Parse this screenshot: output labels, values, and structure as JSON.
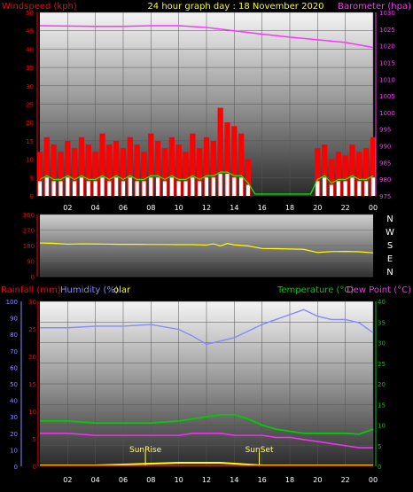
{
  "header": {
    "windspeed_label": "Windspeed (kph)",
    "graph_title": "24 hour graph day : 18 November 2020",
    "barometer_label": "Barometer (hpa)"
  },
  "lower_header": {
    "rainfall_label": "Rainfall (mm)",
    "humidity_label": "Humidity (%)",
    "solar_label": "olar",
    "temperature_label": "Temperature (°C)",
    "dewpoint_label": "Dew Point (°C)"
  },
  "direction_letters": [
    "N",
    "W",
    "S",
    "E",
    "N"
  ],
  "annotations": {
    "sunrise": "SunRise",
    "sunset": "SunSet"
  },
  "colors": {
    "wind": "#ff0000",
    "gust": "#00ff00",
    "avg_wind": "#ffffff",
    "barometer": "#ff33ff",
    "direction": "#ffff00",
    "humidity": "#8888ff",
    "temperature": "#00cc00",
    "dewpoint": "#ee33ee",
    "rain": "#ff0000",
    "solar": "#ffff00",
    "title": "#ffff00"
  },
  "chart_data": [
    {
      "type": "bar",
      "name": "wind-panel",
      "x_ticks": [
        "02",
        "04",
        "06",
        "08",
        "10",
        "12",
        "14",
        "16",
        "18",
        "20",
        "22",
        "00"
      ],
      "ylim_left": [
        0,
        50
      ],
      "yticks_left": [
        0,
        5,
        10,
        15,
        20,
        25,
        30,
        35,
        40,
        45,
        50
      ],
      "ylim_right": [
        975,
        1030
      ],
      "yticks_right": [
        975,
        980,
        985,
        990,
        995,
        1000,
        1005,
        1010,
        1015,
        1020,
        1025,
        1030
      ],
      "wind_hours": [
        0,
        0.5,
        1,
        1.5,
        2,
        2.5,
        3,
        3.5,
        4,
        4.5,
        5,
        5.5,
        6,
        6.5,
        7,
        7.5,
        8,
        8.5,
        9,
        9.5,
        10,
        10.5,
        11,
        11.5,
        12,
        12.5,
        13,
        13.5,
        14,
        14.5,
        15,
        15.5,
        16,
        16.5,
        17,
        17.5,
        18,
        18.5,
        19,
        19.5,
        20,
        20.5,
        21,
        21.5,
        22,
        22.5,
        23,
        23.5,
        24
      ],
      "wind_gust": [
        12,
        16,
        14,
        12,
        15,
        13,
        16,
        14,
        12,
        17,
        14,
        15,
        13,
        16,
        14,
        12,
        17,
        15,
        13,
        16,
        14,
        12,
        17,
        13,
        16,
        15,
        24,
        20,
        19,
        17,
        10,
        0,
        0,
        0,
        0,
        0,
        0,
        0,
        0,
        0,
        13,
        14,
        10,
        12,
        11,
        14,
        12,
        13,
        16
      ],
      "wind_avg": [
        4,
        5,
        4,
        4,
        5,
        4,
        5,
        4,
        4,
        5,
        4,
        5,
        4,
        5,
        4,
        4,
        5,
        5,
        4,
        5,
        4,
        4,
        5,
        4,
        5,
        5,
        6,
        6,
        5,
        5,
        3,
        0,
        0,
        0,
        0,
        0,
        0,
        0,
        0,
        0,
        4,
        5,
        3,
        4,
        4,
        5,
        4,
        4,
        5
      ],
      "barometer_hours": [
        0,
        2,
        4,
        6,
        8,
        10,
        12,
        14,
        16,
        18,
        20,
        22,
        24
      ],
      "barometer": [
        1026,
        1025.9,
        1025.8,
        1025.8,
        1026,
        1026,
        1025.5,
        1024.5,
        1023.5,
        1022.6,
        1021.8,
        1021,
        1019.5
      ]
    },
    {
      "type": "line",
      "name": "direction-panel",
      "ylim": [
        0,
        360
      ],
      "yticks": [
        0,
        90,
        180,
        270,
        360
      ],
      "hours": [
        0,
        1,
        2,
        3,
        4,
        5,
        6,
        7,
        8,
        9,
        10,
        11,
        12,
        12.5,
        13,
        13.5,
        14,
        15,
        16,
        17,
        18,
        19,
        20,
        21,
        22,
        23,
        24
      ],
      "values": [
        195,
        193,
        188,
        190,
        189,
        188,
        187,
        187,
        186,
        186,
        185,
        185,
        183,
        190,
        178,
        192,
        184,
        178,
        163,
        162,
        160,
        158,
        140,
        145,
        146,
        144,
        138
      ]
    },
    {
      "type": "line",
      "name": "temperature-panel",
      "yticks_rain": [
        0,
        5,
        10,
        15,
        20,
        25,
        30
      ],
      "yticks_humidity": [
        0,
        10,
        20,
        30,
        40,
        50,
        60,
        70,
        80,
        90,
        100
      ],
      "ylim_temp": [
        0,
        40
      ],
      "yticks_temp": [
        0,
        5,
        10,
        15,
        20,
        25,
        30,
        35,
        40
      ],
      "hours": [
        0,
        2,
        4,
        6,
        8,
        10,
        11,
        12,
        13,
        14,
        15,
        16,
        17,
        18,
        19,
        20,
        21,
        22,
        23,
        24
      ],
      "humidity": [
        84,
        84,
        85,
        85,
        86,
        83,
        79,
        74,
        76,
        78,
        82,
        86,
        89,
        92,
        95,
        91,
        89,
        89,
        87,
        81
      ],
      "temperature": [
        11,
        11,
        10.5,
        10.5,
        10.5,
        11,
        11.5,
        12,
        12.5,
        12.5,
        11.5,
        10,
        9,
        8.5,
        8,
        8,
        8,
        8,
        7.8,
        9
      ],
      "dewpoint": [
        8,
        8,
        7.5,
        7.5,
        7.5,
        7.5,
        8,
        8,
        8,
        7.5,
        7.5,
        7.5,
        7,
        7,
        6.5,
        6,
        5.5,
        5,
        4.5,
        4.5
      ],
      "rain": [
        0,
        0,
        0,
        0,
        0,
        0,
        0,
        0,
        0,
        0,
        0,
        0,
        0,
        0,
        0,
        0,
        0,
        0,
        0,
        0
      ],
      "solar": [
        0,
        0,
        0,
        1,
        2,
        3,
        3,
        3,
        3,
        2,
        1,
        0,
        0,
        0,
        0,
        0,
        0,
        0,
        0,
        0
      ],
      "sunrise_hour": 7.6,
      "sunset_hour": 15.8
    }
  ]
}
